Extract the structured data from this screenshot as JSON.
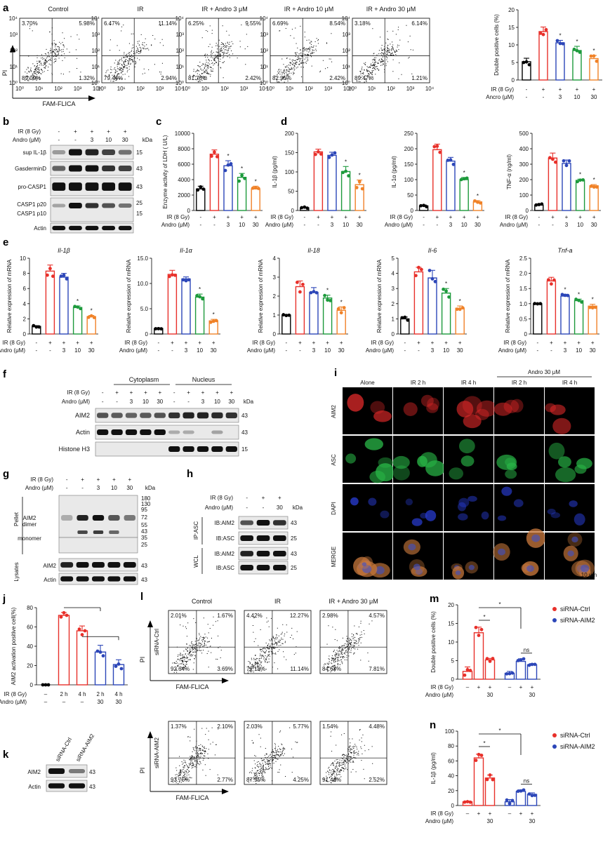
{
  "panel_letters": {
    "a": "a",
    "b": "b",
    "c": "c",
    "d": "d",
    "e": "e",
    "f": "f",
    "g": "g",
    "h": "h",
    "i": "i",
    "j": "j",
    "k": "k",
    "l": "l",
    "m": "m",
    "n": "n"
  },
  "common": {
    "ir_label": "IR (8 Gy)",
    "andro_label": "Andro (μM)",
    "ancro_label": "Ancro (μM)",
    "plus": "+",
    "minus": "-",
    "kda": "kDa",
    "dash": "–"
  },
  "flow_a": {
    "xlabel": "FAM-FLICA",
    "ylabel": "PI",
    "plots": [
      {
        "title": "Control",
        "ul": "3.70%",
        "ur": "5.98%",
        "ll": "89.00%",
        "lr": "1.32%"
      },
      {
        "title": "IR",
        "ul": "6.47%",
        "ur": "11.14%",
        "ll": "79.44%",
        "lr": "2.94%"
      },
      {
        "title": "IR + Andro 3 μM",
        "ul": "6.25%",
        "ur": "9.55%",
        "ll": "81.78%",
        "lr": "2.42%"
      },
      {
        "title": "IR + Andro 10 μM",
        "ul": "6.69%",
        "ur": "8.54%",
        "ll": "82.35%",
        "lr": "2.42%"
      },
      {
        "title": "IR + Andro 30 μM",
        "ul": "3.18%",
        "ur": "6.14%",
        "ll": "89.47%",
        "lr": "1.21%"
      }
    ],
    "ticks": [
      "10⁰",
      "10¹",
      "10²",
      "10³",
      "10⁴"
    ]
  },
  "chart_data": [
    {
      "id": "a",
      "type": "bar",
      "ylabel": "Double positive cells (%)",
      "ylim": [
        0,
        20
      ],
      "yticks": [
        "0",
        "5",
        "10",
        "15",
        "20"
      ],
      "categories": [
        "Control",
        "IR",
        "IR+Andro 3",
        "IR+Andro 10",
        "IR+Andro 30"
      ],
      "values": [
        5.2,
        13.8,
        10.6,
        8.4,
        6.1
      ],
      "errors": [
        1.0,
        1.3,
        0.7,
        1.2,
        0.9
      ],
      "colors": [
        "#000000",
        "#e8302a",
        "#2c46b8",
        "#1d9a3c",
        "#f08228"
      ],
      "sig": [
        "",
        "",
        "*",
        "*",
        "*"
      ],
      "irow": [
        "-",
        "+",
        "+",
        "+",
        "+"
      ],
      "arow": [
        "-",
        "-",
        "3",
        "10",
        "30"
      ]
    },
    {
      "id": "c",
      "type": "bar",
      "ylabel": "Enzyme activity of LDH ( U/L)",
      "ylim": [
        0,
        10000
      ],
      "yticks": [
        "0",
        "2000",
        "4000",
        "6000",
        "8000",
        "10000"
      ],
      "categories": [
        "Control",
        "IR",
        "IR+Andro 3",
        "IR+Andro 10",
        "IR+Andro 30"
      ],
      "values": [
        2800,
        7300,
        5800,
        4300,
        2800
      ],
      "errors": [
        350,
        550,
        650,
        500,
        350
      ],
      "colors": [
        "#000000",
        "#e8302a",
        "#2c46b8",
        "#1d9a3c",
        "#f08228"
      ],
      "sig": [
        "",
        "",
        "*",
        "*",
        "*"
      ],
      "irow": [
        "-",
        "+",
        "+",
        "+",
        "+"
      ],
      "arow": [
        "-",
        "-",
        "3",
        "10",
        "30"
      ]
    },
    {
      "id": "d1",
      "type": "bar",
      "ylabel": "IL-1β (pg/ml)",
      "ylim": [
        0,
        200
      ],
      "yticks": [
        "0",
        "50",
        "100",
        "150",
        "200"
      ],
      "categories": [
        "Control",
        "IR",
        "IR+Andro 3",
        "IR+Andro 10",
        "IR+Andro 30"
      ],
      "values": [
        7,
        152,
        143,
        101,
        67
      ],
      "errors": [
        2,
        7,
        8,
        13,
        12
      ],
      "colors": [
        "#000000",
        "#e8302a",
        "#2c46b8",
        "#1d9a3c",
        "#f08228"
      ],
      "sig": [
        "",
        "",
        "",
        "*",
        "*"
      ],
      "irow": [
        "-",
        "+",
        "+",
        "+",
        "+"
      ],
      "arow": [
        "-",
        "-",
        "3",
        "10",
        "30"
      ]
    },
    {
      "id": "d2",
      "type": "bar",
      "ylabel": "IL-1α (pg/ml)",
      "ylim": [
        0,
        250
      ],
      "yticks": [
        "0",
        "50",
        "100",
        "150",
        "200",
        "250"
      ],
      "categories": [
        "Control",
        "IR",
        "IR+Andro 3",
        "IR+Andro 10",
        "IR+Andro 30"
      ],
      "values": [
        15,
        197,
        160,
        100,
        28
      ],
      "errors": [
        3,
        18,
        12,
        7,
        4
      ],
      "colors": [
        "#000000",
        "#e8302a",
        "#2c46b8",
        "#1d9a3c",
        "#f08228"
      ],
      "sig": [
        "",
        "",
        "",
        "*",
        "*"
      ],
      "irow": [
        "-",
        "+",
        "+",
        "+",
        "+"
      ],
      "arow": [
        "-",
        "-",
        "3",
        "10",
        "30"
      ]
    },
    {
      "id": "d3",
      "type": "bar",
      "ylabel": "TNF-α (ng/ml)",
      "ylim": [
        0,
        500
      ],
      "yticks": [
        "0",
        "100",
        "200",
        "300",
        "400",
        "500"
      ],
      "categories": [
        "Control",
        "IR",
        "IR+Andro 3",
        "IR+Andro 10",
        "IR+Andro 30"
      ],
      "values": [
        35,
        340,
        305,
        195,
        160
      ],
      "errors": [
        8,
        32,
        22,
        8,
        8
      ],
      "colors": [
        "#000000",
        "#e8302a",
        "#2c46b8",
        "#1d9a3c",
        "#f08228"
      ],
      "sig": [
        "",
        "",
        "",
        "*",
        "*"
      ],
      "irow": [
        "-",
        "+",
        "+",
        "+",
        "+"
      ],
      "arow": [
        "-",
        "-",
        "3",
        "10",
        "30"
      ]
    },
    {
      "id": "e1",
      "type": "bar",
      "title": "Il-1β",
      "ylabel": "Relative expression of mRNA",
      "ylim": [
        0,
        10
      ],
      "yticks": [
        "0",
        "2",
        "4",
        "6",
        "8",
        "10"
      ],
      "categories": [
        "Control",
        "IR",
        "IR+Andro 3",
        "IR+Andro 10",
        "IR+Andro 30"
      ],
      "values": [
        1.0,
        8.3,
        7.5,
        3.5,
        2.3
      ],
      "errors": [
        0.1,
        0.8,
        0.5,
        0.2,
        0.15
      ],
      "colors": [
        "#000000",
        "#e8302a",
        "#2c46b8",
        "#1d9a3c",
        "#f08228"
      ],
      "sig": [
        "",
        "",
        "",
        "*",
        "*"
      ],
      "irow": [
        "-",
        "+",
        "+",
        "+",
        "+"
      ],
      "arow": [
        "-",
        "-",
        "3",
        "10",
        "30"
      ]
    },
    {
      "id": "e2",
      "type": "bar",
      "title": "Il-1α",
      "ylabel": "Relative expression of mRNA",
      "ylim": [
        0,
        15
      ],
      "yticks": [
        "0",
        "5.0",
        "10.0",
        "15.0"
      ],
      "categories": [
        "Control",
        "IR",
        "IR+Andro 3",
        "IR+Andro 10",
        "IR+Andro 30"
      ],
      "values": [
        1.1,
        11.8,
        10.9,
        7.3,
        2.6
      ],
      "errors": [
        0.1,
        0.8,
        0.4,
        0.6,
        0.3
      ],
      "colors": [
        "#000000",
        "#e8302a",
        "#2c46b8",
        "#1d9a3c",
        "#f08228"
      ],
      "sig": [
        "",
        "",
        "",
        "*",
        "*"
      ],
      "irow": [
        "-",
        "+",
        "+",
        "+",
        "+"
      ],
      "arow": [
        "-",
        "-",
        "3",
        "10",
        "30"
      ]
    },
    {
      "id": "e3",
      "type": "bar",
      "title": "Il-18",
      "ylabel": "Relative expression of mRNA",
      "ylim": [
        0,
        4
      ],
      "yticks": [
        "0",
        "1",
        "2",
        "3",
        "4"
      ],
      "categories": [
        "Control",
        "IR",
        "IR+Andro 3",
        "IR+Andro 10",
        "IR+Andro 30"
      ],
      "values": [
        1.0,
        2.5,
        2.2,
        1.9,
        1.25
      ],
      "errors": [
        0.03,
        0.3,
        0.25,
        0.15,
        0.18
      ],
      "colors": [
        "#000000",
        "#e8302a",
        "#2c46b8",
        "#1d9a3c",
        "#f08228"
      ],
      "sig": [
        "",
        "",
        "",
        "*",
        "*"
      ],
      "irow": [
        "-",
        "+",
        "+",
        "+",
        "+"
      ],
      "arow": [
        "-",
        "-",
        "3",
        "10",
        "30"
      ]
    },
    {
      "id": "e4",
      "type": "bar",
      "title": "Il-6",
      "ylabel": "Relative expression of mRNA",
      "ylim": [
        0,
        5
      ],
      "yticks": [
        "0",
        "1",
        "2",
        "3",
        "4",
        "5"
      ],
      "categories": [
        "Control",
        "IR",
        "IR+Andro 3",
        "IR+Andro 10",
        "IR+Andro 30"
      ],
      "values": [
        1.0,
        4.1,
        3.7,
        2.7,
        1.7
      ],
      "errors": [
        0.12,
        0.3,
        0.5,
        0.3,
        0.15
      ],
      "colors": [
        "#000000",
        "#e8302a",
        "#2c46b8",
        "#1d9a3c",
        "#f08228"
      ],
      "sig": [
        "",
        "",
        "",
        "*",
        "*"
      ],
      "irow": [
        "-",
        "+",
        "+",
        "+",
        "+"
      ],
      "arow": [
        "-",
        "-",
        "3",
        "10",
        "30"
      ]
    },
    {
      "id": "e5",
      "type": "bar",
      "title": "Tnf-a",
      "ylabel": "Relative expression of mRNA",
      "ylim": [
        0,
        2.5
      ],
      "yticks": [
        "0",
        "0.5",
        "1.0",
        "1.5",
        "2.0",
        "2.5"
      ],
      "categories": [
        "Control",
        "IR",
        "IR+Andro 3",
        "IR+Andro 10",
        "IR+Andro 30"
      ],
      "values": [
        1.0,
        1.75,
        1.25,
        1.1,
        0.92
      ],
      "errors": [
        0.01,
        0.12,
        0.06,
        0.05,
        0.06
      ],
      "colors": [
        "#000000",
        "#e8302a",
        "#2c46b8",
        "#1d9a3c",
        "#f08228"
      ],
      "sig": [
        "",
        "",
        "*",
        "*",
        "*"
      ],
      "irow": [
        "-",
        "+",
        "+",
        "+",
        "+"
      ],
      "arow": [
        "-",
        "-",
        "3",
        "10",
        "30"
      ]
    },
    {
      "id": "j",
      "type": "bar",
      "ylabel": "AIM2 activation positive cell(%)",
      "ylim": [
        0,
        80
      ],
      "yticks": [
        "0",
        "20",
        "40",
        "60",
        "80"
      ],
      "categories": [
        "Control",
        "IR 2 h",
        "IR 4 h",
        "IR 2 h + Andro 30",
        "IR 4 h + Andro 30"
      ],
      "values": [
        0,
        72,
        56,
        34,
        21
      ],
      "errors": [
        0,
        3,
        5,
        7,
        5
      ],
      "colors": [
        "#000000",
        "#e8302a",
        "#e8302a",
        "#2c46b8",
        "#2c46b8"
      ],
      "sig": [
        "",
        "",
        "",
        "",
        ""
      ],
      "irow": [
        "–",
        "2 h",
        "4 h",
        "2 h",
        "4 h"
      ],
      "arow": [
        "–",
        "–",
        "–",
        "30",
        "30"
      ],
      "brackets": [
        [
          1,
          3
        ],
        [
          2,
          4
        ]
      ]
    },
    {
      "id": "m",
      "type": "bar",
      "ylabel": "Double positive cells (%)",
      "ylim": [
        0,
        20
      ],
      "yticks": [
        "0",
        "5",
        "10",
        "15",
        "20"
      ],
      "categories": [
        "siRNA-Ctrl -",
        "siRNA-Ctrl IR",
        "siRNA-Ctrl IR+Andro",
        "siRNA-AIM2 -",
        "siRNA-AIM2 IR",
        "siRNA-AIM2 IR+Andro"
      ],
      "values": [
        2.1,
        12.5,
        5.2,
        1.6,
        4.8,
        3.9
      ],
      "errors": [
        1.2,
        1.5,
        0.4,
        0.5,
        0.7,
        0.3
      ],
      "colors": [
        "#e8302a",
        "#e8302a",
        "#e8302a",
        "#2c46b8",
        "#2c46b8",
        "#2c46b8"
      ],
      "irow": [
        "–",
        "+",
        "+",
        "–",
        "+",
        "+"
      ],
      "arow": [
        "",
        "",
        "30",
        "",
        "",
        "30"
      ],
      "legend": [
        "siRNA-Ctrl",
        "siRNA-AIM2"
      ],
      "brackets_label": [
        "*",
        "*",
        "ns"
      ]
    },
    {
      "id": "n",
      "type": "bar",
      "ylabel": "IL-1β (pg/ml)",
      "ylim": [
        0,
        100
      ],
      "yticks": [
        "0",
        "20",
        "40",
        "60",
        "80",
        "100"
      ],
      "categories": [
        "siRNA-Ctrl -",
        "siRNA-Ctrl IR",
        "siRNA-Ctrl IR+Andro",
        "siRNA-AIM2 -",
        "siRNA-AIM2 IR",
        "siRNA-AIM2 IR+Andro"
      ],
      "values": [
        5,
        64,
        37,
        5,
        19,
        15
      ],
      "errors": [
        1,
        5,
        4,
        3,
        2,
        2
      ],
      "colors": [
        "#e8302a",
        "#e8302a",
        "#e8302a",
        "#2c46b8",
        "#2c46b8",
        "#2c46b8"
      ],
      "irow": [
        "–",
        "+",
        "+",
        "–",
        "+",
        "+"
      ],
      "arow": [
        "",
        "",
        "30",
        "",
        "",
        "30"
      ],
      "legend": [
        "siRNA-Ctrl",
        "siRNA-AIM2"
      ],
      "brackets_label": [
        "*",
        "*",
        "ns"
      ]
    }
  ],
  "blot_b": {
    "header_vals": [
      "-",
      "+",
      "+",
      "+",
      "+"
    ],
    "andro_vals": [
      "-",
      "-",
      "3",
      "10",
      "30"
    ],
    "rows": [
      {
        "label": "sup IL-1β",
        "kda": "15"
      },
      {
        "label": "GasderminD",
        "kda": "43"
      },
      {
        "label": "pro-CASP1",
        "kda": "43"
      },
      {
        "label": "CASP1 p20",
        "kda": "25"
      },
      {
        "label": "CASP1 p10",
        "kda": "15"
      },
      {
        "label": "Actin",
        "kda": ""
      }
    ]
  },
  "blot_f": {
    "groups": [
      "Cytoplasm",
      "Nucleus"
    ],
    "ir_vals": [
      "-",
      "+",
      "+",
      "+",
      "+",
      "-",
      "+",
      "+",
      "+",
      "+"
    ],
    "andro_vals": [
      "-",
      "-",
      "3",
      "10",
      "30",
      "-",
      "-",
      "3",
      "10",
      "30"
    ],
    "rows": [
      {
        "label": "AIM2",
        "kda": "43"
      },
      {
        "label": "Actin",
        "kda": "43"
      },
      {
        "label": "Histone H3",
        "kda": "15"
      }
    ]
  },
  "blot_g": {
    "ir_vals": [
      "-",
      "+",
      "+",
      "+",
      "+"
    ],
    "andro_vals": [
      "-",
      "-",
      "3",
      "10",
      "30"
    ],
    "side_pellet": "Pellet",
    "side_lysates": "Lysates",
    "dimer": "AIM2\ndimer",
    "dimer_a": "AIM2",
    "dimer_b": "dimer",
    "monomer": "monomer",
    "markers": [
      "180",
      "130",
      "95",
      "72",
      "55",
      "43",
      "35",
      "25"
    ],
    "rows": [
      {
        "label": "AIM2",
        "kda": "43"
      },
      {
        "label": "Actin",
        "kda": "43"
      }
    ]
  },
  "blot_h": {
    "ir_vals": [
      "-",
      "+",
      "+"
    ],
    "andro_vals": [
      "-",
      "-",
      "30"
    ],
    "side_ip": "IP:ASC",
    "side_wcl": "WCL",
    "rows": [
      {
        "label": "IB:AIM2",
        "kda": "43"
      },
      {
        "label": "IB:ASC",
        "kda": "25"
      },
      {
        "label": "IB:AIM2",
        "kda": "43"
      },
      {
        "label": "IB:ASC",
        "kda": "25"
      }
    ]
  },
  "micro_i": {
    "cols": [
      "Alone",
      "IR 2 h",
      "IR 4 h",
      "IR 2 h",
      "IR 4 h"
    ],
    "group": "Andro 30 μM",
    "rows": [
      {
        "label": "AIM2",
        "color": "#e03030"
      },
      {
        "label": "ASC",
        "color": "#22a040"
      },
      {
        "label": "DAPI",
        "color": "#2a3acc"
      },
      {
        "label": "MERGE",
        "color": "#d04040"
      }
    ],
    "scale": "10 μm"
  },
  "blot_k": {
    "lanes": [
      "siRNA-Ctrl",
      "siRNA-AIM2"
    ],
    "rows": [
      {
        "label": "AIM2",
        "kda": "43"
      },
      {
        "label": "Actin",
        "kda": "43"
      }
    ]
  },
  "flow_l": {
    "cols": [
      "Control",
      "IR",
      "IR + Andro 30 μM"
    ],
    "rows": [
      "siRNA-Ctrl",
      "siRNA-AIM2"
    ],
    "xlabel": "FAM-FLICA",
    "ylabel": "PI",
    "vals": [
      [
        {
          "ul": "2.01%",
          "ur": "1.67%",
          "ll": "92.64%",
          "lr": "3.69%"
        },
        {
          "ul": "4.42%",
          "ur": "12.27%",
          "ll": "72.18%",
          "lr": "11.14%"
        },
        {
          "ul": "2.98%",
          "ur": "4.57%",
          "ll": "84.64%",
          "lr": "7.81%"
        }
      ],
      [
        {
          "ul": "1.37%",
          "ur": "2.10%",
          "ll": "93.76%",
          "lr": "2.77%"
        },
        {
          "ul": "2.03%",
          "ur": "5.77%",
          "ll": "87.95%",
          "lr": "4.25%"
        },
        {
          "ul": "1.54%",
          "ur": "4.48%",
          "ll": "91.46%",
          "lr": "2.52%"
        }
      ]
    ]
  }
}
